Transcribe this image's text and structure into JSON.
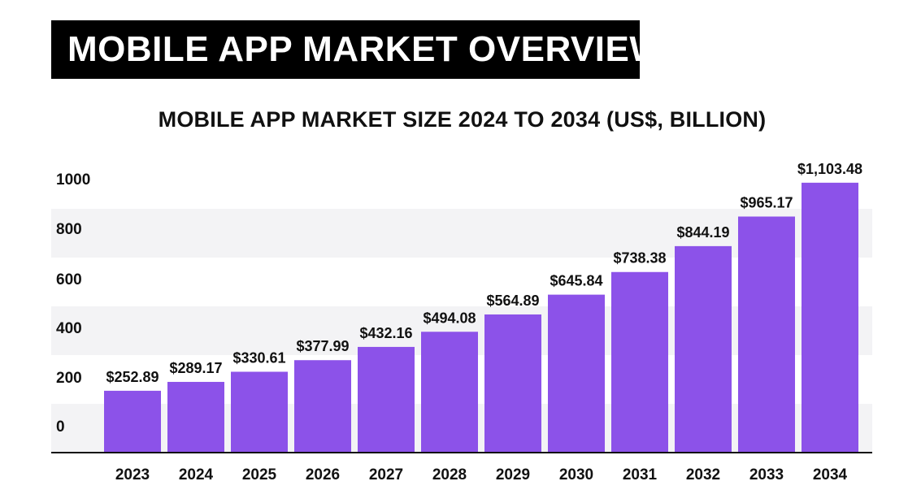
{
  "banner": {
    "title": "MOBILE APP MARKET OVERVIEW"
  },
  "chart_data": {
    "type": "bar",
    "title": "MOBILE APP MARKET SIZE 2024 TO 2034 (US$, BILLION)",
    "xlabel": "",
    "ylabel": "",
    "categories": [
      "2023",
      "2024",
      "2025",
      "2026",
      "2027",
      "2028",
      "2029",
      "2030",
      "2031",
      "2032",
      "2033",
      "2034"
    ],
    "values": [
      252.89,
      289.17,
      330.61,
      377.99,
      432.16,
      494.08,
      564.89,
      645.84,
      738.38,
      844.19,
      965.17,
      1103.48
    ],
    "data_labels": [
      "$252.89",
      "$289.17",
      "$330.61",
      "$377.99",
      "$432.16",
      "$494.08",
      "$564.89",
      "$645.84",
      "$738.38",
      "$844.19",
      "$965.17",
      "$1,103.48"
    ],
    "y_ticks": [
      "0",
      "200",
      "400",
      "600",
      "800",
      "1000"
    ],
    "ylim": [
      0,
      1000
    ],
    "bar_color": "#8c52e9",
    "band_color": "#f3f3f5",
    "axis_color": "#111111"
  }
}
